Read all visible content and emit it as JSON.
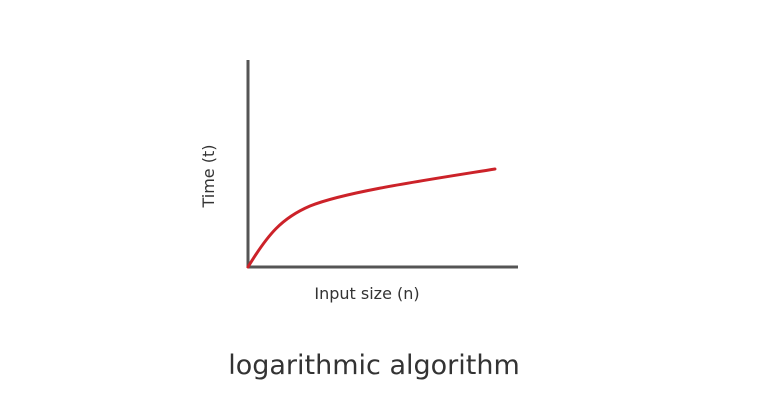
{
  "diagram": {
    "ylabel": "Time (t)",
    "xlabel": "Input size (n)",
    "caption": "logarithmic algorithm",
    "curve_shape": "logarithmic",
    "colors": {
      "axis": "#555555",
      "curve": "#cc2229",
      "text": "#333333"
    }
  }
}
